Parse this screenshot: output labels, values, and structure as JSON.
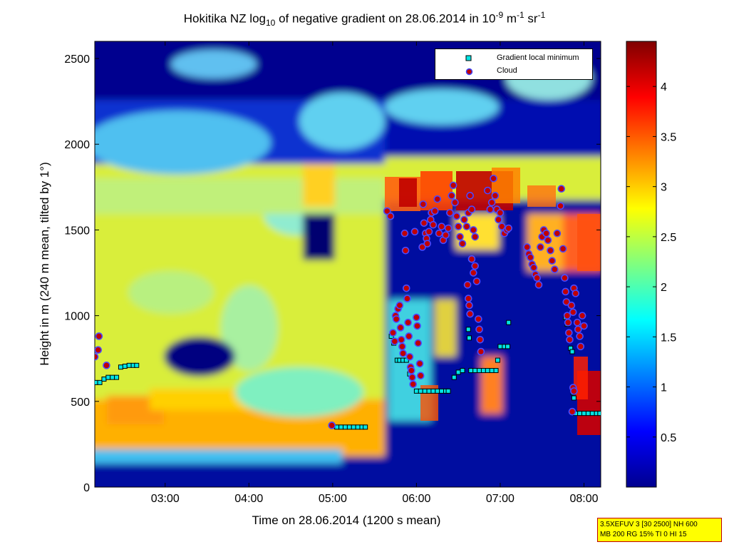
{
  "chart_data": {
    "type": "heatmap",
    "title_parts": {
      "a": "Hokitika NZ log",
      "a_sub": "10",
      "b": " of negative gradient on 28.06.2014 in 10",
      "b_sup": "-9",
      "c": " m",
      "c_sup": "-1",
      "d": " sr",
      "d_sup": "-1"
    },
    "xlabel": "Time on 28.06.2014 (1200 s mean)",
    "ylabel": "Height in m (240 m mean, tilted by 1°)",
    "xlim_hours": [
      2.16,
      8.2
    ],
    "ylim": [
      0,
      2600
    ],
    "x_ticks": [
      {
        "value": 3,
        "label": "03:00"
      },
      {
        "value": 4,
        "label": "04:00"
      },
      {
        "value": 5,
        "label": "05:00"
      },
      {
        "value": 6,
        "label": "06:00"
      },
      {
        "value": 7,
        "label": "07:00"
      },
      {
        "value": 8,
        "label": "08:00"
      }
    ],
    "y_ticks": [
      0,
      500,
      1000,
      1500,
      2000,
      2500
    ],
    "colorbar": {
      "range": [
        0,
        4.45
      ],
      "ticks": [
        0.5,
        1,
        1.5,
        2,
        2.5,
        3,
        3.5,
        4
      ],
      "colormap": "jet"
    },
    "legend": {
      "placement": "top-right",
      "entries": [
        {
          "label": "Gradient local minimum",
          "marker": "square",
          "color": "#00e5e5"
        },
        {
          "label": "Cloud",
          "marker": "circle",
          "color": "#c00000"
        }
      ]
    },
    "gradient_local_minimum": [
      [
        2.17,
        610
      ],
      [
        2.22,
        610
      ],
      [
        2.27,
        630
      ],
      [
        2.32,
        640
      ],
      [
        2.37,
        640
      ],
      [
        2.42,
        640
      ],
      [
        2.47,
        700
      ],
      [
        2.52,
        705
      ],
      [
        2.57,
        710
      ],
      [
        2.62,
        710
      ],
      [
        2.66,
        710
      ],
      [
        5.0,
        355
      ],
      [
        5.05,
        350
      ],
      [
        5.1,
        350
      ],
      [
        5.15,
        350
      ],
      [
        5.2,
        350
      ],
      [
        5.25,
        350
      ],
      [
        5.3,
        350
      ],
      [
        5.35,
        350
      ],
      [
        5.39,
        350
      ],
      [
        5.7,
        880
      ],
      [
        5.73,
        840
      ],
      [
        5.77,
        740
      ],
      [
        5.8,
        740
      ],
      [
        5.84,
        740
      ],
      [
        5.88,
        740
      ],
      [
        5.92,
        660
      ],
      [
        5.95,
        640
      ],
      [
        6.0,
        560
      ],
      [
        6.05,
        560
      ],
      [
        6.1,
        560
      ],
      [
        6.15,
        560
      ],
      [
        6.2,
        560
      ],
      [
        6.25,
        560
      ],
      [
        6.3,
        560
      ],
      [
        6.35,
        560
      ],
      [
        6.38,
        560
      ],
      [
        6.45,
        640
      ],
      [
        6.5,
        670
      ],
      [
        6.55,
        680
      ],
      [
        6.62,
        920
      ],
      [
        6.63,
        870
      ],
      [
        6.65,
        680
      ],
      [
        6.7,
        680
      ],
      [
        6.75,
        680
      ],
      [
        6.8,
        680
      ],
      [
        6.85,
        680
      ],
      [
        6.9,
        680
      ],
      [
        6.95,
        680
      ],
      [
        6.97,
        740
      ],
      [
        7.0,
        820
      ],
      [
        7.05,
        820
      ],
      [
        7.09,
        820
      ],
      [
        7.1,
        960
      ],
      [
        7.78,
        990
      ],
      [
        7.8,
        950
      ],
      [
        7.82,
        900
      ],
      [
        7.84,
        810
      ],
      [
        7.86,
        790
      ],
      [
        7.87,
        550
      ],
      [
        7.88,
        520
      ],
      [
        7.9,
        430
      ],
      [
        7.95,
        430
      ],
      [
        8.0,
        430
      ],
      [
        8.05,
        430
      ],
      [
        8.1,
        430
      ],
      [
        8.15,
        430
      ],
      [
        8.19,
        430
      ]
    ],
    "cloud": [
      [
        2.16,
        760
      ],
      [
        2.2,
        800
      ],
      [
        2.21,
        880
      ],
      [
        2.3,
        710
      ],
      [
        4.99,
        360
      ],
      [
        5.65,
        1610
      ],
      [
        5.69,
        1580
      ],
      [
        5.72,
        900
      ],
      [
        5.74,
        850
      ],
      [
        5.75,
        1000
      ],
      [
        5.76,
        980
      ],
      [
        5.78,
        1040
      ],
      [
        5.8,
        1060
      ],
      [
        5.81,
        930
      ],
      [
        5.82,
        860
      ],
      [
        5.83,
        820
      ],
      [
        5.84,
        780
      ],
      [
        5.86,
        1480
      ],
      [
        5.87,
        1380
      ],
      [
        5.88,
        1160
      ],
      [
        5.89,
        1100
      ],
      [
        5.9,
        960
      ],
      [
        5.91,
        880
      ],
      [
        5.92,
        760
      ],
      [
        5.93,
        700
      ],
      [
        5.94,
        680
      ],
      [
        5.95,
        640
      ],
      [
        5.96,
        600
      ],
      [
        5.98,
        1490
      ],
      [
        6.0,
        990
      ],
      [
        6.01,
        940
      ],
      [
        6.02,
        840
      ],
      [
        6.04,
        720
      ],
      [
        6.05,
        650
      ],
      [
        6.07,
        1400
      ],
      [
        6.08,
        1650
      ],
      [
        6.09,
        1540
      ],
      [
        6.11,
        1480
      ],
      [
        6.12,
        1450
      ],
      [
        6.13,
        1420
      ],
      [
        6.15,
        1490
      ],
      [
        6.17,
        1560
      ],
      [
        6.18,
        1600
      ],
      [
        6.2,
        1530
      ],
      [
        6.22,
        1610
      ],
      [
        6.25,
        1680
      ],
      [
        6.27,
        1480
      ],
      [
        6.3,
        1520
      ],
      [
        6.32,
        1440
      ],
      [
        6.35,
        1470
      ],
      [
        6.38,
        1510
      ],
      [
        6.4,
        1600
      ],
      [
        6.42,
        1700
      ],
      [
        6.44,
        1760
      ],
      [
        6.46,
        1660
      ],
      [
        6.48,
        1580
      ],
      [
        6.5,
        1520
      ],
      [
        6.52,
        1460
      ],
      [
        6.55,
        1420
      ],
      [
        6.57,
        1560
      ],
      [
        6.6,
        1520
      ],
      [
        6.62,
        1600
      ],
      [
        6.64,
        1700
      ],
      [
        6.66,
        1620
      ],
      [
        6.68,
        1500
      ],
      [
        6.7,
        1460
      ],
      [
        6.61,
        1180
      ],
      [
        6.62,
        1100
      ],
      [
        6.63,
        1060
      ],
      [
        6.64,
        1010
      ],
      [
        6.66,
        1330
      ],
      [
        6.68,
        1250
      ],
      [
        6.7,
        1290
      ],
      [
        6.72,
        1200
      ],
      [
        6.74,
        980
      ],
      [
        6.75,
        920
      ],
      [
        6.76,
        860
      ],
      [
        6.77,
        790
      ],
      [
        6.85,
        1730
      ],
      [
        6.88,
        1620
      ],
      [
        6.9,
        1660
      ],
      [
        6.92,
        1800
      ],
      [
        6.94,
        1700
      ],
      [
        6.96,
        1620
      ],
      [
        6.98,
        1560
      ],
      [
        7.0,
        1600
      ],
      [
        7.02,
        1520
      ],
      [
        7.05,
        1480
      ],
      [
        7.08,
        1500
      ],
      [
        7.1,
        1510
      ],
      [
        7.32,
        1400
      ],
      [
        7.34,
        1360
      ],
      [
        7.36,
        1340
      ],
      [
        7.38,
        1300
      ],
      [
        7.4,
        1280
      ],
      [
        7.42,
        1240
      ],
      [
        7.44,
        1220
      ],
      [
        7.46,
        1180
      ],
      [
        7.48,
        1400
      ],
      [
        7.5,
        1460
      ],
      [
        7.52,
        1500
      ],
      [
        7.55,
        1480
      ],
      [
        7.57,
        1440
      ],
      [
        7.6,
        1380
      ],
      [
        7.62,
        1320
      ],
      [
        7.65,
        1270
      ],
      [
        7.68,
        1480
      ],
      [
        7.72,
        1640
      ],
      [
        7.73,
        1740
      ],
      [
        7.75,
        1390
      ],
      [
        7.77,
        1220
      ],
      [
        7.78,
        1140
      ],
      [
        7.79,
        1080
      ],
      [
        7.8,
        1000
      ],
      [
        7.81,
        960
      ],
      [
        7.82,
        900
      ],
      [
        7.83,
        860
      ],
      [
        7.85,
        1060
      ],
      [
        7.87,
        1020
      ],
      [
        7.88,
        1160
      ],
      [
        7.9,
        1130
      ],
      [
        7.92,
        960
      ],
      [
        7.93,
        920
      ],
      [
        7.95,
        880
      ],
      [
        7.96,
        820
      ],
      [
        7.98,
        1000
      ],
      [
        8.0,
        940
      ],
      [
        7.87,
        580
      ],
      [
        7.88,
        560
      ],
      [
        7.86,
        440
      ]
    ]
  },
  "info_box": {
    "line1": "3.5XEFUV 3 [30 2500] NH 600",
    "line2": "MB 200 RG 15% TI 0 HI 15"
  }
}
